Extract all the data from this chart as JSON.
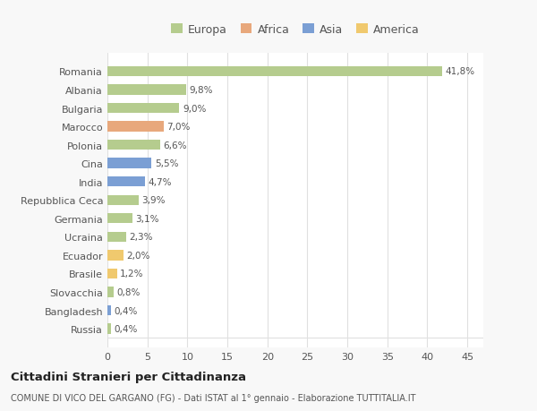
{
  "categories": [
    "Romania",
    "Albania",
    "Bulgaria",
    "Marocco",
    "Polonia",
    "Cina",
    "India",
    "Repubblica Ceca",
    "Germania",
    "Ucraina",
    "Ecuador",
    "Brasile",
    "Slovacchia",
    "Bangladesh",
    "Russia"
  ],
  "values": [
    41.8,
    9.8,
    9.0,
    7.0,
    6.6,
    5.5,
    4.7,
    3.9,
    3.1,
    2.3,
    2.0,
    1.2,
    0.8,
    0.4,
    0.4
  ],
  "labels": [
    "41,8%",
    "9,8%",
    "9,0%",
    "7,0%",
    "6,6%",
    "5,5%",
    "4,7%",
    "3,9%",
    "3,1%",
    "2,3%",
    "2,0%",
    "1,2%",
    "0,8%",
    "0,4%",
    "0,4%"
  ],
  "colors": [
    "#b5cc8e",
    "#b5cc8e",
    "#b5cc8e",
    "#e8a87c",
    "#b5cc8e",
    "#7b9fd4",
    "#7b9fd4",
    "#b5cc8e",
    "#b5cc8e",
    "#b5cc8e",
    "#f0c96e",
    "#f0c96e",
    "#b5cc8e",
    "#7b9fd4",
    "#b5cc8e"
  ],
  "legend_labels": [
    "Europa",
    "Africa",
    "Asia",
    "America"
  ],
  "legend_colors": [
    "#b5cc8e",
    "#e8a87c",
    "#7b9fd4",
    "#f0c96e"
  ],
  "xlim": [
    0,
    47
  ],
  "xticks": [
    0,
    5,
    10,
    15,
    20,
    25,
    30,
    35,
    40,
    45
  ],
  "title": "Cittadini Stranieri per Cittadinanza",
  "subtitle": "COMUNE DI VICO DEL GARGANO (FG) - Dati ISTAT al 1° gennaio - Elaborazione TUTTITALIA.IT",
  "bg_color": "#f8f8f8",
  "plot_bg_color": "#ffffff",
  "grid_color": "#e0e0e0",
  "text_color": "#555555"
}
